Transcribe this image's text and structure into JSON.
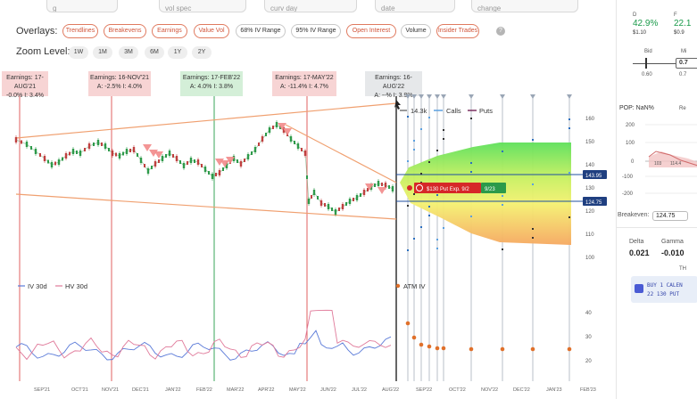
{
  "top_strip": [
    "g",
    "vol spec",
    "curv day",
    "date",
    "change"
  ],
  "overlays": {
    "label": "Overlays:",
    "items": [
      {
        "label": "Trendlines",
        "active": true
      },
      {
        "label": "Breakevens",
        "active": true
      },
      {
        "label": "Earnings",
        "active": true
      },
      {
        "label": "Value Vol",
        "active": true
      },
      {
        "label": "68% IV Range",
        "active": false
      },
      {
        "label": "95% IV Range",
        "active": false
      },
      {
        "label": "Open Interest",
        "active": true
      },
      {
        "label": "Volume",
        "active": false
      },
      {
        "label": "Insider Trades",
        "active": true
      }
    ],
    "help": "?"
  },
  "zoom": {
    "label": "Zoom Level:",
    "items": [
      "1W",
      "1M",
      "3M",
      "6M",
      "1Y",
      "2Y"
    ]
  },
  "earnings": [
    {
      "line1": "Earnings: 17-AUG'21",
      "line2": "-0.0%  I: 3.4%",
      "tone": "red"
    },
    {
      "line1": "Earnings: 16-NOV'21",
      "line2": "A: -2.5%  I: 4.0%",
      "tone": "red"
    },
    {
      "line1": "Earnings: 17-FEB'22",
      "line2": "A: 4.0%  I: 3.8%",
      "tone": "green"
    },
    {
      "line1": "Earnings: 17-MAY'22",
      "line2": "A: -11.4%  I: 4.7%",
      "tone": "red"
    },
    {
      "line1": "Earnings: 16-AUG'22",
      "line2": "A: --%  I: 3.9%",
      "tone": "gray"
    }
  ],
  "price_chart": {
    "legend": {
      "volume": "14.3k",
      "calls": "Calls",
      "puts": "Puts"
    },
    "y_ticks": [
      "160",
      "150",
      "140",
      "130",
      "120",
      "110",
      "100"
    ],
    "price_tags": {
      "upper": "143.95",
      "lower": "124.75"
    },
    "position_label": "$130 Put Exp. 9/2",
    "position_date": "9/23"
  },
  "iv_chart": {
    "legend": {
      "iv": "IV 30d",
      "hv": "HV 30d",
      "atm": "ATM IV"
    },
    "y_ticks": [
      "40",
      "30",
      "20"
    ]
  },
  "x_axis": [
    "SEP'21",
    "OCT'21",
    "NOV'21",
    "DEC'21",
    "JAN'22",
    "FEB'22",
    "MAR'22",
    "APR'22",
    "MAY'22",
    "JUN'22",
    "JUL'22",
    "AUG'22",
    "SEP'22",
    "OCT'22",
    "NOV'22",
    "DEC'22",
    "JAN'23",
    "FEB'23"
  ],
  "right_panel": {
    "col_d_label": "D",
    "col_f_label": "F",
    "d_pct": "42.9%",
    "f_pct": "22.1",
    "d_price": "$1.10",
    "f_price": "$0.9",
    "bid_label": "Bid",
    "mid_label": "Mi",
    "mid_value": "0.7",
    "bid_low": "0.60",
    "mid_low": "0.7",
    "pop_label": "POP: NaN%",
    "re_label": "Re",
    "pl_ticks": [
      "200",
      "100",
      "0",
      "-100",
      "-200"
    ],
    "pl_x1": "103",
    "pl_x2": "114.4",
    "breakeven_label": "Breakeven:",
    "breakeven_value": "124.75",
    "delta_label": "Delta",
    "delta_value": "0.021",
    "gamma_label": "Gamma",
    "gamma_value": "-0.010",
    "th_label": "TH",
    "order_line1": "BUY 1 CALEN",
    "order_line2": "22 130 PUT"
  }
}
